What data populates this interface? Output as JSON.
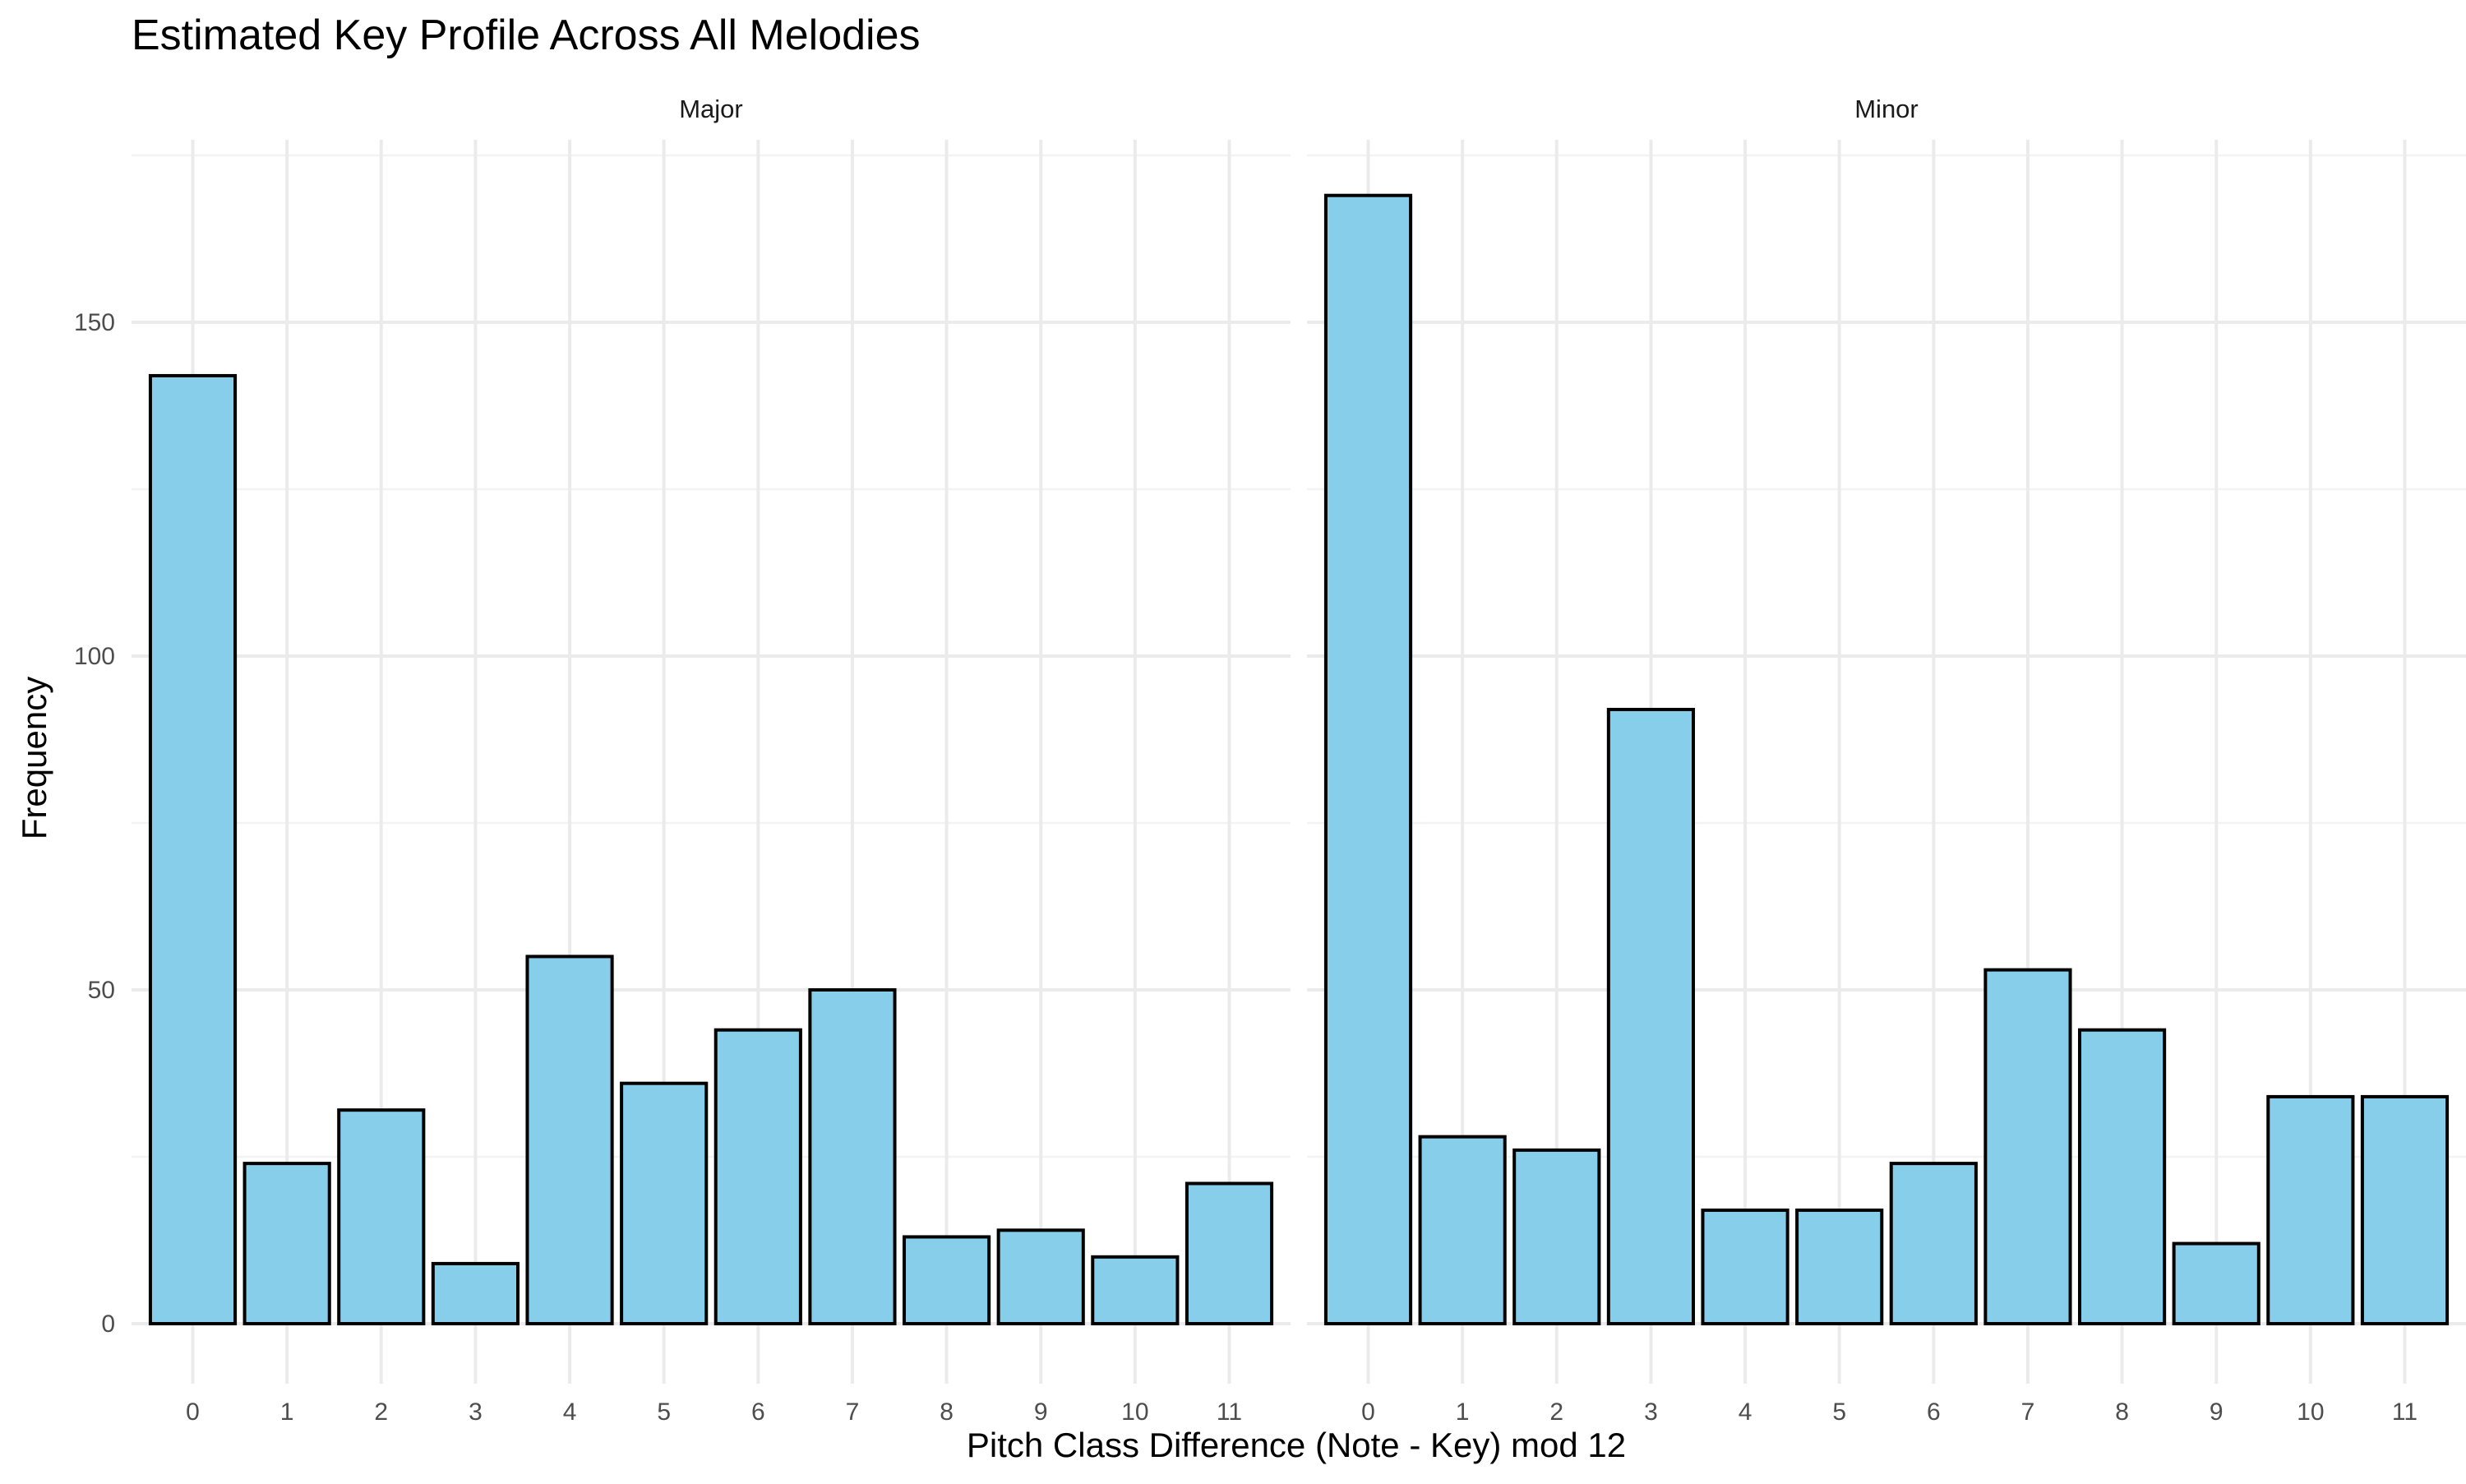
{
  "chart_data": {
    "type": "bar",
    "title": "Estimated Key Profile Across All Melodies",
    "xlabel": "Pitch Class Difference (Note - Key) mod 12",
    "ylabel": "Frequency",
    "categories": [
      "0",
      "1",
      "2",
      "3",
      "4",
      "5",
      "6",
      "7",
      "8",
      "9",
      "10",
      "11"
    ],
    "y_ticks": [
      "0",
      "50",
      "100",
      "150"
    ],
    "ylim": [
      0,
      178
    ],
    "grid": true,
    "bar_fill": "#87CEEB",
    "bar_outline": "#000000",
    "panels": [
      {
        "name": "Major",
        "values": [
          142,
          24,
          32,
          9,
          55,
          36,
          44,
          50,
          13,
          14,
          10,
          21
        ]
      },
      {
        "name": "Minor",
        "values": [
          169,
          28,
          26,
          92,
          17,
          17,
          24,
          53,
          44,
          12,
          34,
          34
        ]
      }
    ]
  }
}
